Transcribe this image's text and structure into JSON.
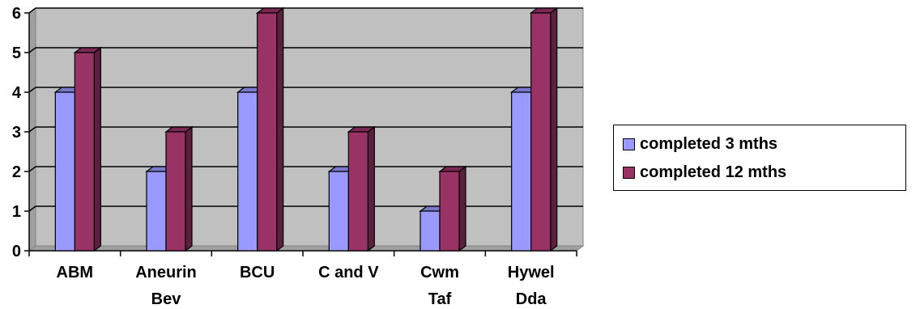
{
  "chart_data": {
    "type": "bar",
    "categories": [
      [
        "ABM"
      ],
      [
        "Aneurin",
        "Bev"
      ],
      [
        "BCU"
      ],
      [
        "C and V"
      ],
      [
        "Cwm",
        "Taf"
      ],
      [
        "Hywel",
        "Dda"
      ]
    ],
    "series": [
      {
        "name": "completed 3 mths",
        "values": [
          4,
          2,
          4,
          2,
          1,
          4
        ],
        "color": "#9999FF"
      },
      {
        "name": "completed 12 mths",
        "values": [
          5,
          3,
          6,
          3,
          2,
          6
        ],
        "color": "#993366"
      }
    ],
    "ylim": [
      0,
      6
    ],
    "yticks": [
      "0",
      "1",
      "2",
      "3",
      "4",
      "5",
      "6"
    ],
    "grid": true,
    "style": "3d-clustered-column",
    "wall_color": "#C0C0C0",
    "legend_position": "right"
  },
  "legend": {
    "items": [
      {
        "label": "completed 3 mths",
        "color": "#9999FF"
      },
      {
        "label": "completed 12 mths",
        "color": "#993366"
      }
    ]
  }
}
